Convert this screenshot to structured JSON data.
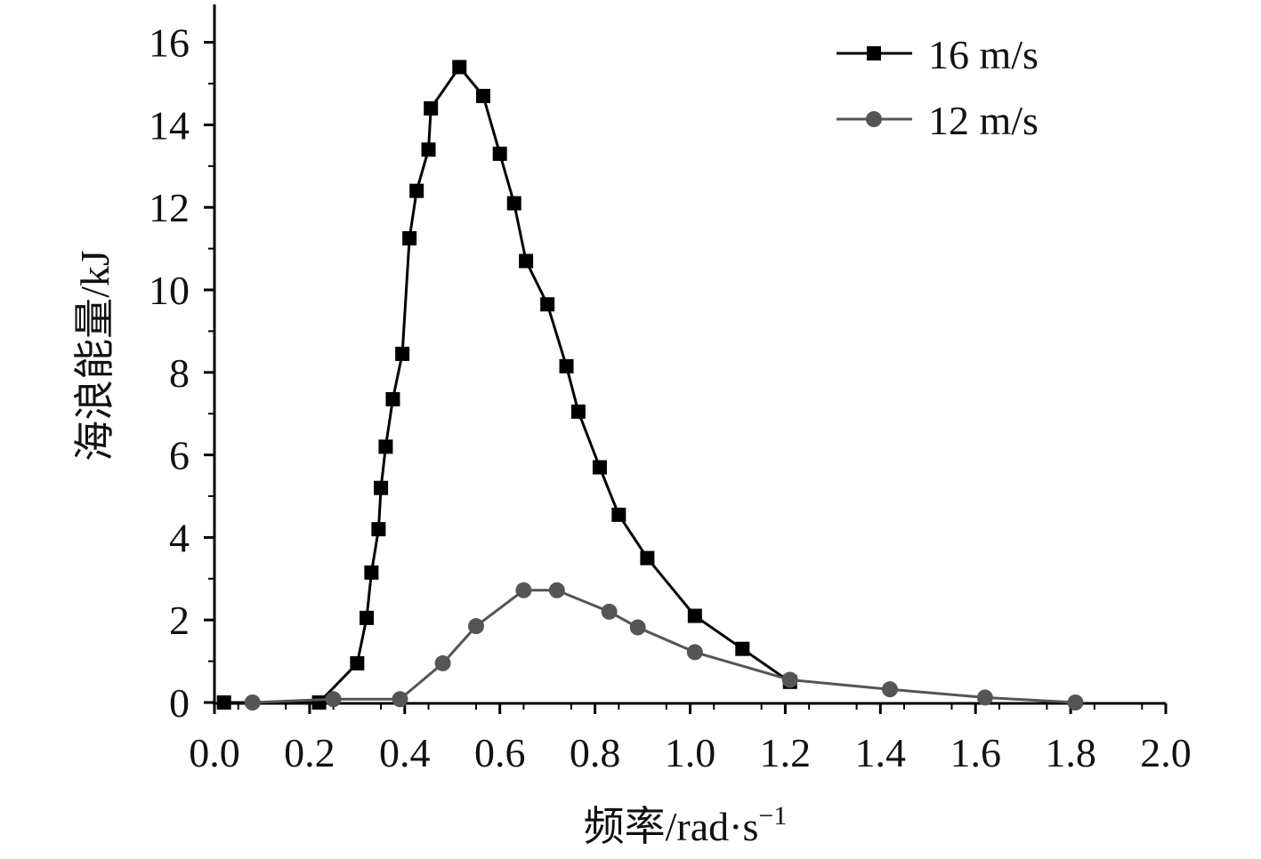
{
  "chart_data": {
    "type": "line",
    "xlabel": "频率/rad·s",
    "xlabel_superscript": "−1",
    "ylabel": "海浪能量/kJ",
    "xlim": [
      0,
      2.0
    ],
    "ylim": [
      0,
      17
    ],
    "x_ticks": [
      "0.0",
      "0.2",
      "0.4",
      "0.6",
      "0.8",
      "1.0",
      "1.2",
      "1.4",
      "1.6",
      "1.8",
      "2.0"
    ],
    "y_ticks": [
      "0",
      "2",
      "4",
      "6",
      "8",
      "10",
      "12",
      "14",
      "16"
    ],
    "grid": false,
    "legend_position": "top-right",
    "series": [
      {
        "name": "16 m/s",
        "marker": "square",
        "color": "#000000",
        "x": [
          0.02,
          0.22,
          0.3,
          0.32,
          0.33,
          0.345,
          0.35,
          0.36,
          0.375,
          0.395,
          0.41,
          0.425,
          0.45,
          0.455,
          0.515,
          0.565,
          0.6,
          0.63,
          0.655,
          0.7,
          0.74,
          0.765,
          0.81,
          0.85,
          0.91,
          1.01,
          1.11,
          1.21
        ],
        "y": [
          0.0,
          0.0,
          0.95,
          2.05,
          3.15,
          4.2,
          5.2,
          6.2,
          7.35,
          8.45,
          11.25,
          12.4,
          13.4,
          14.4,
          15.4,
          14.7,
          13.3,
          12.1,
          10.7,
          9.65,
          8.15,
          7.05,
          5.7,
          4.55,
          3.5,
          2.1,
          1.3,
          0.5
        ]
      },
      {
        "name": "12 m/s",
        "marker": "circle",
        "color": "#555555",
        "x": [
          0.08,
          0.25,
          0.39,
          0.48,
          0.55,
          0.65,
          0.72,
          0.83,
          0.89,
          1.01,
          1.21,
          1.42,
          1.62,
          1.81
        ],
        "y": [
          0.0,
          0.08,
          0.08,
          0.95,
          1.85,
          2.72,
          2.72,
          2.2,
          1.82,
          1.22,
          0.55,
          0.32,
          0.12,
          0.0
        ]
      }
    ]
  }
}
